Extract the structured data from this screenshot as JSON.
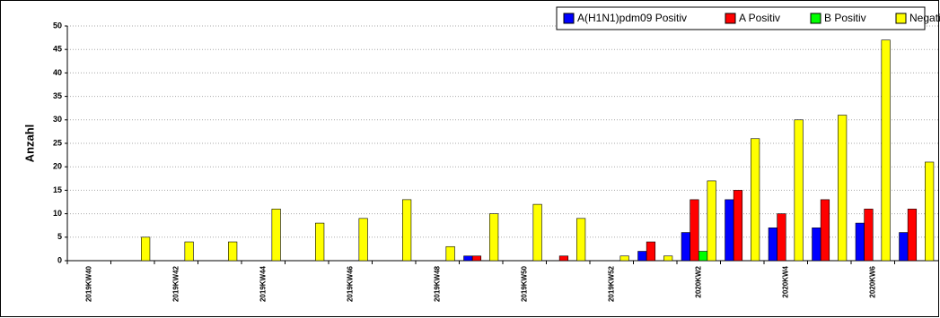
{
  "chart_data": {
    "type": "bar",
    "y_label": "Anzahl",
    "categories": [
      "2019KW40",
      null,
      "2019KW42",
      null,
      "2019KW44",
      null,
      "2019KW46",
      null,
      "2019KW48",
      null,
      "2019KW50",
      null,
      "2019KW52",
      null,
      "2020KW2",
      null,
      "2020KW4",
      null,
      "2020KW6",
      null
    ],
    "series": [
      {
        "name": "A(H1N1)pdm09 Positiv",
        "color": "#0000ff",
        "values": [
          0,
          0,
          0,
          0,
          0,
          0,
          0,
          0,
          0,
          1,
          0,
          0,
          0,
          2,
          6,
          13,
          7,
          7,
          8,
          6
        ]
      },
      {
        "name": "A Positiv",
        "color": "#ff0000",
        "values": [
          0,
          0,
          0,
          0,
          0,
          0,
          0,
          0,
          0,
          1,
          0,
          1,
          0,
          4,
          13,
          15,
          10,
          13,
          11,
          11
        ]
      },
      {
        "name": "B Positiv",
        "color": "#00ff00",
        "values": [
          0,
          0,
          0,
          0,
          0,
          0,
          0,
          0,
          0,
          0,
          0,
          0,
          0,
          0,
          2,
          0,
          0,
          0,
          0,
          0
        ]
      },
      {
        "name": "Negativ",
        "color": "#ffff00",
        "values": [
          0,
          5,
          4,
          4,
          11,
          8,
          9,
          13,
          3,
          10,
          12,
          9,
          1,
          1,
          17,
          26,
          30,
          31,
          47,
          21
        ]
      }
    ],
    "ylim": [
      0,
      50
    ],
    "yticks": [
      0,
      5,
      10,
      15,
      20,
      25,
      30,
      35,
      40,
      45,
      50
    ],
    "grid": true,
    "legend": "top-right"
  }
}
